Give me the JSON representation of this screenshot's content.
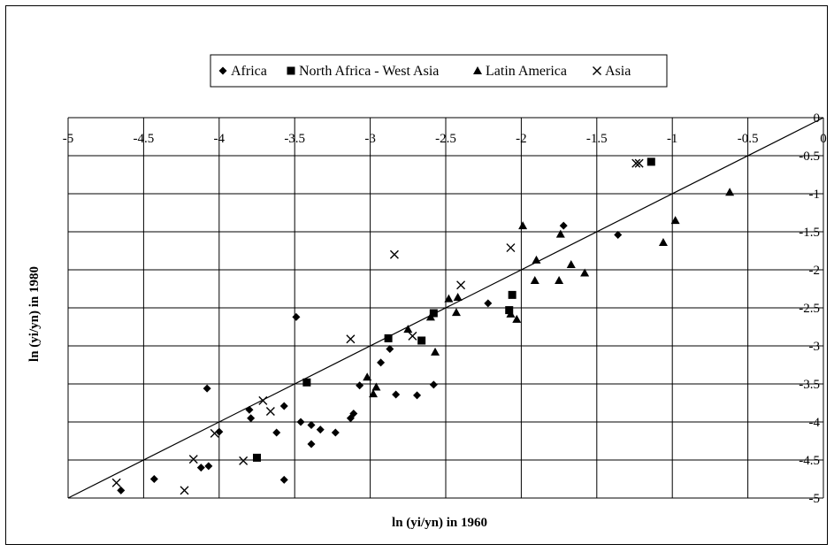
{
  "chart_data": {
    "type": "scatter",
    "title": "",
    "xlabel": "ln (yi/yn) in 1960",
    "ylabel": "ln (yi/yn) in 1980",
    "xlim": [
      -5,
      0
    ],
    "ylim": [
      -5,
      0
    ],
    "x_ticks": [
      -5,
      -4.5,
      -4,
      -3.5,
      -3,
      -2.5,
      -2,
      -1.5,
      -1,
      -0.5,
      0
    ],
    "y_ticks": [
      0,
      -0.5,
      -1,
      -1.5,
      -2,
      -2.5,
      -3,
      -3.5,
      -4,
      -4.5,
      -5
    ],
    "x_tick_labels": [
      "-5",
      "-4.5",
      "-4",
      "-3.5",
      "-3",
      "-2.5",
      "-2",
      "-1.5",
      "-1",
      "-0.5",
      "0"
    ],
    "y_tick_labels": [
      "0",
      "-0.5",
      "-1",
      "-1.5",
      "-2",
      "-2.5",
      "-3",
      "-3.5",
      "-4",
      "-4.5",
      "-5"
    ],
    "grid": true,
    "legend_position": "top",
    "reference_line": {
      "type": "45-degree line",
      "points": [
        [
          -5,
          -5
        ],
        [
          0,
          0
        ]
      ]
    },
    "series": [
      {
        "name": "Africa",
        "marker": "diamond",
        "color": "#000000",
        "points": [
          [
            -4.65,
            -4.9
          ],
          [
            -4.43,
            -4.75
          ],
          [
            -4.12,
            -4.6
          ],
          [
            -4.07,
            -4.58
          ],
          [
            -4.08,
            -3.56
          ],
          [
            -4.0,
            -4.13
          ],
          [
            -3.79,
            -3.95
          ],
          [
            -3.8,
            -3.84
          ],
          [
            -3.62,
            -4.14
          ],
          [
            -3.57,
            -3.79
          ],
          [
            -3.57,
            -4.76
          ],
          [
            -3.46,
            -4.0
          ],
          [
            -3.39,
            -4.04
          ],
          [
            -3.39,
            -4.29
          ],
          [
            -3.33,
            -4.1
          ],
          [
            -3.23,
            -4.14
          ],
          [
            -3.13,
            -3.95
          ],
          [
            -3.11,
            -3.89
          ],
          [
            -3.07,
            -3.52
          ],
          [
            -2.93,
            -3.22
          ],
          [
            -2.87,
            -3.04
          ],
          [
            -2.83,
            -3.64
          ],
          [
            -2.69,
            -3.65
          ],
          [
            -2.58,
            -3.51
          ],
          [
            -3.49,
            -2.62
          ],
          [
            -2.22,
            -2.44
          ],
          [
            -1.72,
            -1.42
          ],
          [
            -1.36,
            -1.54
          ]
        ]
      },
      {
        "name": "North Africa - West Asia",
        "marker": "square",
        "color": "#000000",
        "points": [
          [
            -3.75,
            -4.47
          ],
          [
            -3.42,
            -3.48
          ],
          [
            -2.88,
            -2.9
          ],
          [
            -2.66,
            -2.93
          ],
          [
            -2.58,
            -2.57
          ],
          [
            -2.06,
            -2.33
          ],
          [
            -2.08,
            -2.53
          ],
          [
            -1.14,
            -0.58
          ]
        ]
      },
      {
        "name": "Latin America",
        "marker": "triangle",
        "color": "#000000",
        "points": [
          [
            -3.02,
            -3.41
          ],
          [
            -2.98,
            -3.63
          ],
          [
            -2.96,
            -3.54
          ],
          [
            -2.75,
            -2.78
          ],
          [
            -2.57,
            -3.08
          ],
          [
            -2.6,
            -2.62
          ],
          [
            -2.48,
            -2.38
          ],
          [
            -2.43,
            -2.56
          ],
          [
            -2.42,
            -2.36
          ],
          [
            -2.07,
            -2.58
          ],
          [
            -2.03,
            -2.65
          ],
          [
            -1.99,
            -1.42
          ],
          [
            -1.9,
            -1.87
          ],
          [
            -1.91,
            -2.14
          ],
          [
            -1.74,
            -1.53
          ],
          [
            -1.75,
            -2.14
          ],
          [
            -1.67,
            -1.93
          ],
          [
            -1.58,
            -2.04
          ],
          [
            -1.06,
            -1.64
          ],
          [
            -0.98,
            -1.35
          ],
          [
            -0.62,
            -0.98
          ]
        ]
      },
      {
        "name": "Asia",
        "marker": "cross",
        "color": "#000000",
        "points": [
          [
            -4.68,
            -4.8
          ],
          [
            -4.23,
            -4.9
          ],
          [
            -4.17,
            -4.49
          ],
          [
            -4.03,
            -4.15
          ],
          [
            -3.84,
            -4.51
          ],
          [
            -3.71,
            -3.72
          ],
          [
            -3.66,
            -3.86
          ],
          [
            -3.13,
            -2.91
          ],
          [
            -2.84,
            -1.8
          ],
          [
            -2.72,
            -2.87
          ],
          [
            -2.4,
            -2.2
          ],
          [
            -2.07,
            -1.71
          ],
          [
            -1.24,
            -0.6
          ],
          [
            -1.22,
            -0.6
          ]
        ]
      }
    ]
  }
}
